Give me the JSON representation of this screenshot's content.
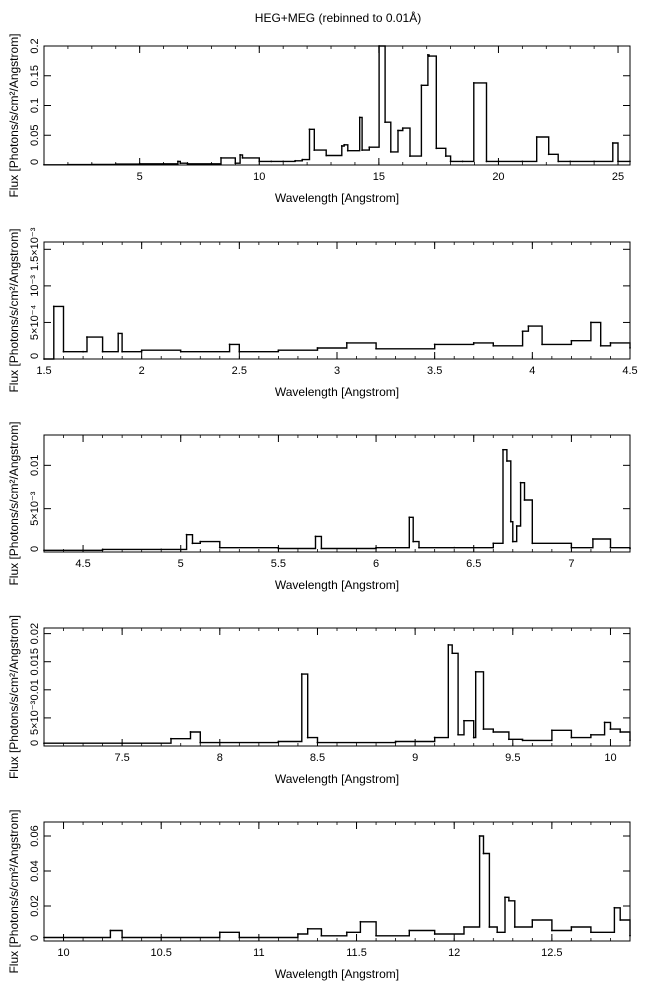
{
  "figure": {
    "title": "HEG+MEG (rebinned to 0.01Å)"
  },
  "chart_data": [
    {
      "type": "line",
      "title": "",
      "xlabel": "Wavelength [Angstrom]",
      "ylabel": "Flux [Photons/s/cm²/Angstrom]",
      "xlim": [
        1.0,
        25.5
      ],
      "ylim": [
        0,
        0.2
      ],
      "xticks": [
        5,
        10,
        15,
        20,
        25
      ],
      "xtick_labels": [
        "5",
        "10",
        "15",
        "20",
        "25"
      ],
      "yticks": [
        0,
        0.05,
        0.1,
        0.15,
        0.2
      ],
      "ytick_labels": [
        "0",
        "0.05",
        "0.1",
        "0.15",
        "0.2"
      ],
      "series": [
        {
          "x": [
            1.0,
            2.0,
            3.0,
            4.0,
            5.0,
            6.0,
            6.6,
            6.7,
            7.0,
            8.0,
            8.4,
            9.0,
            9.2,
            9.3,
            10.0,
            10.5,
            11.0,
            11.5,
            11.8,
            12.1,
            12.3,
            12.8,
            13.45,
            13.55,
            13.7,
            14.2,
            14.3,
            14.6,
            15.01,
            15.26,
            15.5,
            15.8,
            16.0,
            16.3,
            16.78,
            17.05,
            17.1,
            17.4,
            17.8,
            18.0,
            18.5,
            18.97,
            19.5,
            20.0,
            21.0,
            21.6,
            22.1,
            22.5,
            23.0,
            24.0,
            24.78,
            25.0,
            25.5
          ],
          "y": [
            0.0004,
            0.0006,
            0.001,
            0.0015,
            0.002,
            0.002,
            0.006,
            0.003,
            0.002,
            0.002,
            0.012,
            0.003,
            0.017,
            0.012,
            0.006,
            0.006,
            0.006,
            0.007,
            0.009,
            0.06,
            0.025,
            0.016,
            0.032,
            0.034,
            0.024,
            0.08,
            0.025,
            0.03,
            0.2,
            0.072,
            0.022,
            0.058,
            0.062,
            0.015,
            0.134,
            0.185,
            0.183,
            0.028,
            0.015,
            0.006,
            0.006,
            0.138,
            0.006,
            0.006,
            0.006,
            0.047,
            0.018,
            0.006,
            0.006,
            0.006,
            0.037,
            0.006,
            0.006
          ]
        }
      ]
    },
    {
      "type": "line",
      "title": "",
      "xlabel": "Wavelength [Angstrom]",
      "ylabel": "Flux [Photons/s/cm²/Angstrom]",
      "xlim": [
        1.5,
        4.5
      ],
      "ylim": [
        0,
        0.0016
      ],
      "xticks": [
        1.5,
        2,
        2.5,
        3,
        3.5,
        4,
        4.5
      ],
      "xtick_labels": [
        "1.5",
        "2",
        "2.5",
        "3",
        "3.5",
        "4",
        "4.5"
      ],
      "yticks": [
        0,
        0.0005,
        0.001,
        0.0015
      ],
      "ytick_labels": [
        "0",
        "5×10⁻⁴",
        "10⁻³",
        "1.5×10⁻³"
      ],
      "series": [
        {
          "x": [
            1.5,
            1.55,
            1.6,
            1.7,
            1.72,
            1.8,
            1.88,
            1.9,
            2.0,
            2.2,
            2.45,
            2.5,
            2.7,
            2.9,
            3.05,
            3.2,
            3.5,
            3.7,
            3.8,
            3.95,
            3.98,
            4.05,
            4.2,
            4.3,
            4.35,
            4.4,
            4.5
          ],
          "y": [
            0.0,
            0.00072,
            0.0001,
            0.0001,
            0.0003,
            0.0001,
            0.00035,
            0.0001,
            0.00012,
            0.0001,
            0.0002,
            0.0001,
            0.00012,
            0.00015,
            0.00022,
            0.00014,
            0.0002,
            0.00022,
            0.00018,
            0.00038,
            0.00045,
            0.0002,
            0.00025,
            0.0005,
            0.00018,
            0.00022,
            0.00015
          ]
        }
      ]
    },
    {
      "type": "line",
      "title": "",
      "xlabel": "Wavelength [Angstrom]",
      "ylabel": "Flux [Photons/s/cm²/Angstrom]",
      "xlim": [
        4.3,
        7.3
      ],
      "ylim": [
        0,
        0.0135
      ],
      "xticks": [
        4.5,
        5,
        5.5,
        6,
        6.5,
        7
      ],
      "xtick_labels": [
        "4.5",
        "5",
        "5.5",
        "6",
        "6.5",
        "7"
      ],
      "yticks": [
        0,
        0.005,
        0.01
      ],
      "ytick_labels": [
        "0",
        "5×10⁻³",
        "0.01"
      ],
      "series": [
        {
          "x": [
            4.3,
            4.6,
            4.9,
            5.03,
            5.06,
            5.1,
            5.2,
            5.5,
            5.69,
            5.72,
            6.0,
            6.17,
            6.19,
            6.22,
            6.4,
            6.6,
            6.65,
            6.67,
            6.69,
            6.7,
            6.72,
            6.74,
            6.76,
            6.8,
            7.0,
            7.11,
            7.2,
            7.3
          ],
          "y": [
            0.0002,
            0.0003,
            0.0003,
            0.002,
            0.001,
            0.0012,
            0.0005,
            0.0004,
            0.0018,
            0.0004,
            0.0005,
            0.004,
            0.0012,
            0.0005,
            0.0005,
            0.001,
            0.0118,
            0.0105,
            0.0035,
            0.0012,
            0.003,
            0.008,
            0.006,
            0.001,
            0.0005,
            0.0015,
            0.0005,
            0.0004
          ]
        }
      ]
    },
    {
      "type": "line",
      "title": "",
      "xlabel": "Wavelength [Angstrom]",
      "ylabel": "Flux [Photons/s/cm²/Angstrom]",
      "xlim": [
        7.1,
        10.1
      ],
      "ylim": [
        0,
        0.021
      ],
      "xticks": [
        7.5,
        8,
        8.5,
        9,
        9.5,
        10
      ],
      "xtick_labels": [
        "7.5",
        "8",
        "8.5",
        "9",
        "9.5",
        "10"
      ],
      "yticks": [
        0,
        0.005,
        0.01,
        0.015,
        0.02
      ],
      "ytick_labels": [
        "0",
        "5×10⁻³",
        "0.01",
        "0.015",
        "0.02"
      ],
      "series": [
        {
          "x": [
            7.1,
            7.5,
            7.75,
            7.85,
            7.9,
            8.3,
            8.42,
            8.45,
            8.5,
            8.9,
            9.1,
            9.17,
            9.19,
            9.22,
            9.25,
            9.3,
            9.31,
            9.35,
            9.4,
            9.48,
            9.55,
            9.7,
            9.8,
            9.9,
            9.97,
            10.0,
            10.05,
            10.1
          ],
          "y": [
            0.0005,
            0.0005,
            0.0013,
            0.0025,
            0.0006,
            0.0008,
            0.0128,
            0.0015,
            0.0006,
            0.0008,
            0.0015,
            0.018,
            0.0165,
            0.002,
            0.0045,
            0.0015,
            0.0132,
            0.003,
            0.0025,
            0.0012,
            0.001,
            0.0028,
            0.0015,
            0.002,
            0.0042,
            0.003,
            0.0025,
            0.001
          ]
        }
      ]
    },
    {
      "type": "line",
      "title": "",
      "xlabel": "Wavelength [Angstrom]",
      "ylabel": "Flux [Photons/s/cm²/Angstrom]",
      "xlim": [
        9.9,
        12.9
      ],
      "ylim": [
        0,
        0.068
      ],
      "xticks": [
        10,
        10.5,
        11,
        11.5,
        12,
        12.5
      ],
      "xtick_labels": [
        "10",
        "10.5",
        "11",
        "11.5",
        "12",
        "12.5"
      ],
      "yticks": [
        0,
        0.02,
        0.04,
        0.06
      ],
      "ytick_labels": [
        "0",
        "0.02",
        "0.04",
        "0.06"
      ],
      "series": [
        {
          "x": [
            9.9,
            10.24,
            10.3,
            10.8,
            10.9,
            11.2,
            11.25,
            11.32,
            11.45,
            11.52,
            11.6,
            11.77,
            11.9,
            12.05,
            12.13,
            12.15,
            12.18,
            12.22,
            12.26,
            12.28,
            12.31,
            12.4,
            12.5,
            12.6,
            12.7,
            12.82,
            12.85,
            12.9
          ],
          "y": [
            0.002,
            0.006,
            0.002,
            0.005,
            0.002,
            0.004,
            0.007,
            0.003,
            0.005,
            0.011,
            0.003,
            0.006,
            0.004,
            0.008,
            0.06,
            0.05,
            0.008,
            0.005,
            0.025,
            0.023,
            0.008,
            0.012,
            0.006,
            0.008,
            0.005,
            0.019,
            0.012,
            0.003
          ]
        }
      ]
    }
  ]
}
